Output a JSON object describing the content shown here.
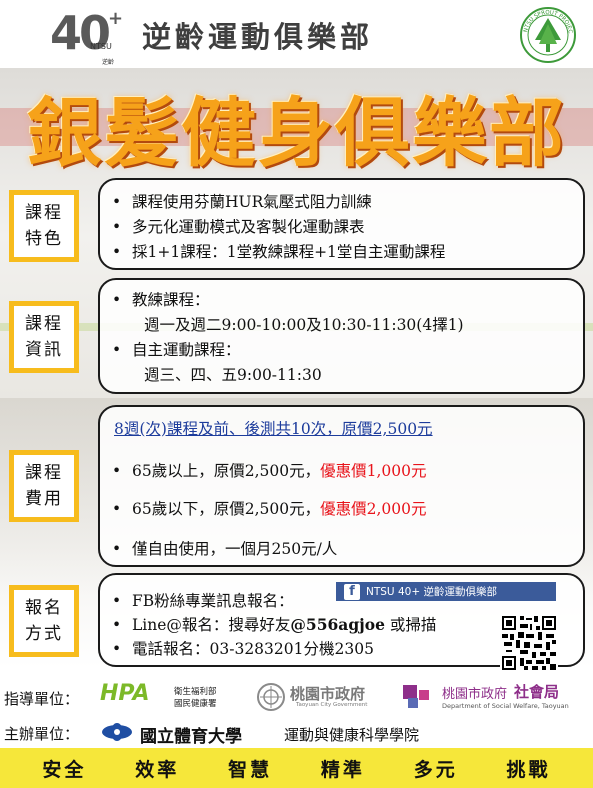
{
  "header": {
    "logo_number": "40",
    "logo_plus": "+",
    "logo_ntsu": "NTSU",
    "logo_sub": "逆齡",
    "top_title": "逆齡運動俱樂部",
    "sprout_text": "NTSU SPROUT PROJECT",
    "main_title": "銀髮健身俱樂部"
  },
  "sections": {
    "features": {
      "label": [
        "課程",
        "特色"
      ],
      "items": [
        "課程使用芬蘭HUR氣壓式阻力訓練",
        "多元化運動模式及客製化運動課表",
        "採1+1課程：1堂教練課程+1堂自主運動課程"
      ]
    },
    "info": {
      "label": [
        "課程",
        "資訊"
      ],
      "coach_title": "教練課程：",
      "coach_time": "週一及週二9:00-10:00及10:30-11:30(4擇1)",
      "self_title": "自主運動課程：",
      "self_time": "週三、四、五9:00-11:30"
    },
    "fees": {
      "label": [
        "課程",
        "費用"
      ],
      "headline": "8週(次)課程及前、後測共10次，原價2,500元",
      "over65": "65歲以上，原價2,500元，",
      "over65_discount": "優惠價1,000元",
      "under65": "65歲以下，原價2,500元，",
      "under65_discount": "優惠價2,000元",
      "free_use": "僅自由使用，一個月250元/人"
    },
    "signup": {
      "label": [
        "報名",
        "方式"
      ],
      "fb": "FB粉絲專業訊息報名：",
      "fb_page": "NTSU 40+ 逆齡運動俱樂部",
      "line_prefix": "Line@報名：搜尋好友",
      "line_id": "@556agjoe",
      "line_suffix": "或掃描",
      "phone": "電話報名：03-3283201分機2305"
    }
  },
  "organizers": {
    "guide_label": "指導單位：",
    "hpa": "HPA",
    "hpa_sub1": "衛生福利部",
    "hpa_sub2": "國民健康署",
    "taoyuan_gov": "桃園市政府",
    "taoyuan_gov_en": "Taoyuan City Government",
    "social_bureau_prefix": "桃園市政府",
    "social_bureau": "社會局",
    "social_bureau_en": "Department of Social Welfare, Taoyuan",
    "host_label": "主辦單位：",
    "university": "國立體育大學",
    "college": "運動與健康科學學院"
  },
  "footer": [
    "安全",
    "效率",
    "智慧",
    "精準",
    "多元",
    "挑戰"
  ],
  "colors": {
    "title_orange": "#f6a21a",
    "label_yellow": "#f7bc1d",
    "discount_red": "#e8141b",
    "footer_yellow": "#f6e73a",
    "fb_blue": "#3b5b9a"
  }
}
